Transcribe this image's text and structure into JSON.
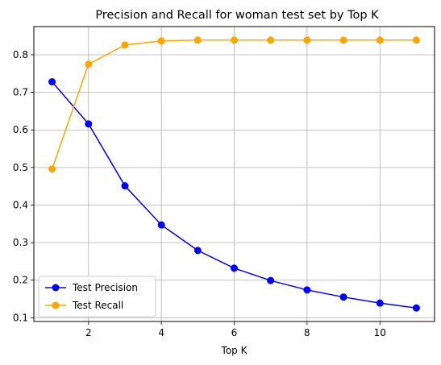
{
  "chart_data": {
    "type": "line",
    "title": "Precision and Recall for woman test set by Top K",
    "xlabel": "Top K",
    "ylabel": "",
    "xlim": [
      0.5,
      11.5
    ],
    "ylim": [
      0.09,
      0.875
    ],
    "xticks": [
      2,
      4,
      6,
      8,
      10
    ],
    "yticks": [
      0.1,
      0.2,
      0.3,
      0.4,
      0.5,
      0.6,
      0.7,
      0.8
    ],
    "grid": true,
    "legend_position": "lower-left",
    "x": [
      1,
      2,
      3,
      4,
      5,
      6,
      7,
      8,
      9,
      10,
      11
    ],
    "series": [
      {
        "name": "Test Precision",
        "color": "#0000ff",
        "values": [
          0.728,
          0.616,
          0.451,
          0.347,
          0.279,
          0.232,
          0.199,
          0.174,
          0.155,
          0.139,
          0.126
        ]
      },
      {
        "name": "Test Recall",
        "color": "#ffa500",
        "values": [
          0.496,
          0.775,
          0.826,
          0.837,
          0.839,
          0.839,
          0.839,
          0.839,
          0.839,
          0.839,
          0.839
        ]
      }
    ]
  }
}
